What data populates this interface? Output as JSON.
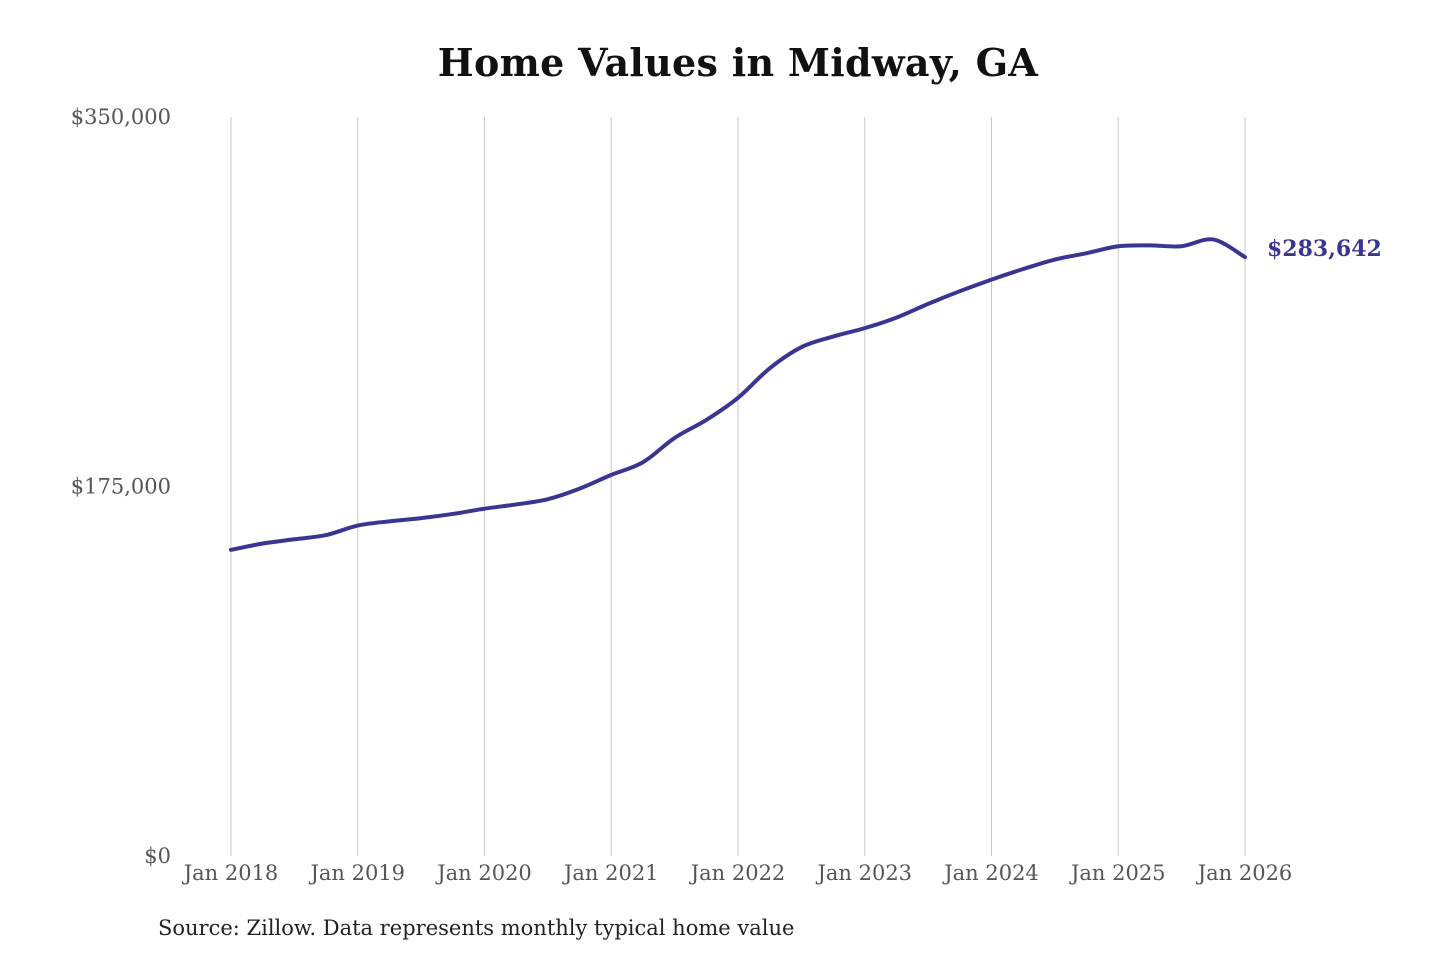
{
  "title": "Home Values in Midway, GA",
  "source": "Source: Zillow. Data represents monthly typical home value",
  "colors": {
    "line": "#3b3592",
    "grid": "#c8c8c8",
    "tick_text": "#555555",
    "end_label": "#3b3592"
  },
  "chart_data": {
    "type": "line",
    "title": "Home Values in Midway, GA",
    "xlabel": "",
    "ylabel": "",
    "x_range": [
      "2018-01",
      "2026-01"
    ],
    "ylim": [
      0,
      350000
    ],
    "y_ticks": [
      {
        "value": 0,
        "label": "$0"
      },
      {
        "value": 175000,
        "label": "$175,000"
      },
      {
        "value": 350000,
        "label": "$350,000"
      }
    ],
    "x_ticks": [
      {
        "value": "2018-01",
        "label": "Jan 2018"
      },
      {
        "value": "2019-01",
        "label": "Jan 2019"
      },
      {
        "value": "2020-01",
        "label": "Jan 2020"
      },
      {
        "value": "2021-01",
        "label": "Jan 2021"
      },
      {
        "value": "2022-01",
        "label": "Jan 2022"
      },
      {
        "value": "2023-01",
        "label": "Jan 2023"
      },
      {
        "value": "2024-01",
        "label": "Jan 2024"
      },
      {
        "value": "2025-01",
        "label": "Jan 2025"
      },
      {
        "value": "2026-01",
        "label": "Jan 2026"
      }
    ],
    "grid": "vertical",
    "end_label": "$283,642",
    "series": [
      {
        "points": [
          {
            "x": "2018-01",
            "y": 145000
          },
          {
            "x": "2018-04",
            "y": 148000
          },
          {
            "x": "2018-07",
            "y": 150000
          },
          {
            "x": "2018-10",
            "y": 152000
          },
          {
            "x": "2019-01",
            "y": 156500
          },
          {
            "x": "2019-04",
            "y": 158500
          },
          {
            "x": "2019-07",
            "y": 160000
          },
          {
            "x": "2019-10",
            "y": 162000
          },
          {
            "x": "2020-01",
            "y": 164500
          },
          {
            "x": "2020-04",
            "y": 166500
          },
          {
            "x": "2020-07",
            "y": 169000
          },
          {
            "x": "2020-10",
            "y": 174000
          },
          {
            "x": "2021-01",
            "y": 180500
          },
          {
            "x": "2021-04",
            "y": 186500
          },
          {
            "x": "2021-07",
            "y": 198000
          },
          {
            "x": "2021-10",
            "y": 206500
          },
          {
            "x": "2022-01",
            "y": 217000
          },
          {
            "x": "2022-04",
            "y": 231000
          },
          {
            "x": "2022-07",
            "y": 241000
          },
          {
            "x": "2022-10",
            "y": 246000
          },
          {
            "x": "2023-01",
            "y": 250000
          },
          {
            "x": "2023-04",
            "y": 255000
          },
          {
            "x": "2023-07",
            "y": 261500
          },
          {
            "x": "2023-10",
            "y": 267500
          },
          {
            "x": "2024-01",
            "y": 273000
          },
          {
            "x": "2024-04",
            "y": 278000
          },
          {
            "x": "2024-07",
            "y": 282500
          },
          {
            "x": "2024-10",
            "y": 285500
          },
          {
            "x": "2025-01",
            "y": 288800
          },
          {
            "x": "2025-04",
            "y": 289200
          },
          {
            "x": "2025-07",
            "y": 288800
          },
          {
            "x": "2025-10",
            "y": 292000
          },
          {
            "x": "2026-01",
            "y": 283642
          }
        ]
      }
    ]
  }
}
